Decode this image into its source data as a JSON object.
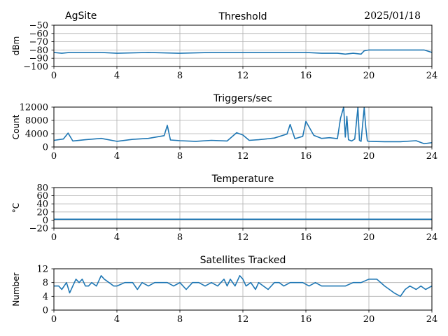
{
  "header": {
    "site": "AgSite",
    "date": "2025/01/18"
  },
  "colors": {
    "series": "#1f77b4",
    "grid": "#b0b0b0",
    "axis": "#000000"
  },
  "chart_data": [
    {
      "type": "line",
      "title": "Threshold",
      "xlabel": "",
      "ylabel": "dBm",
      "xlim": [
        0,
        24
      ],
      "ylim": [
        -100,
        -50
      ],
      "xticks": [
        0,
        4,
        8,
        12,
        16,
        20,
        24
      ],
      "yticks": [
        -100,
        -90,
        -80,
        -70,
        -60,
        -50
      ],
      "grid": true,
      "series": [
        {
          "x": [
            0,
            0.5,
            1,
            2,
            3,
            4,
            6,
            8,
            10,
            12,
            14,
            16,
            17,
            18,
            18.5,
            19,
            19.5,
            19.7,
            20,
            21,
            22,
            23,
            23.5,
            24
          ],
          "values": [
            -83,
            -84,
            -83,
            -83,
            -83,
            -84,
            -83,
            -84,
            -83,
            -83,
            -83,
            -83,
            -84,
            -84,
            -85,
            -84,
            -85,
            -81,
            -80,
            -80,
            -80,
            -80,
            -80,
            -83
          ]
        }
      ]
    },
    {
      "type": "line",
      "title": "Triggers/sec",
      "xlabel": "",
      "ylabel": "Count",
      "xlim": [
        0,
        24
      ],
      "ylim": [
        0,
        12000
      ],
      "xticks": [
        0,
        4,
        8,
        12,
        16,
        20,
        24
      ],
      "yticks": [
        0,
        4000,
        8000,
        12000
      ],
      "grid": true,
      "series": [
        {
          "x": [
            0,
            0.6,
            0.9,
            1.2,
            2,
            3,
            4,
            5,
            6,
            7,
            7.2,
            7.4,
            8,
            9,
            10,
            11,
            11.6,
            12,
            12.4,
            13,
            14,
            14.8,
            15,
            15.3,
            15.8,
            16,
            16.5,
            17,
            17.5,
            18,
            18.2,
            18.4,
            18.5,
            18.6,
            18.7,
            18.9,
            19.1,
            19.3,
            19.4,
            19.5,
            19.7,
            19.8,
            19.9,
            20,
            21,
            22,
            23,
            23.5,
            24
          ],
          "values": [
            2000,
            2400,
            4200,
            1800,
            2200,
            2600,
            1700,
            2300,
            2600,
            3400,
            6500,
            2100,
            1900,
            1700,
            2000,
            1800,
            4300,
            3600,
            2000,
            2200,
            2700,
            3900,
            6800,
            2500,
            3200,
            7700,
            3500,
            2600,
            2800,
            2500,
            8700,
            12000,
            3000,
            9200,
            2200,
            1800,
            2400,
            11900,
            2000,
            1700,
            11800,
            6000,
            1800,
            1700,
            1600,
            1600,
            1900,
            1000,
            1300
          ]
        }
      ]
    },
    {
      "type": "line",
      "title": "Temperature",
      "xlabel": "",
      "ylabel": "°C",
      "xlim": [
        0,
        24
      ],
      "ylim": [
        -20,
        80
      ],
      "xticks": [
        0,
        4,
        8,
        12,
        16,
        20,
        24
      ],
      "yticks": [
        -20,
        0,
        20,
        40,
        60,
        80
      ],
      "grid": true,
      "series": [
        {
          "x": [
            0,
            24
          ],
          "values": [
            2,
            2
          ]
        }
      ]
    },
    {
      "type": "line",
      "title": "Satellites Tracked",
      "xlabel": "",
      "ylabel": "Number",
      "xlim": [
        0,
        24
      ],
      "ylim": [
        0,
        12
      ],
      "xticks": [
        0,
        4,
        8,
        12,
        16,
        20,
        24
      ],
      "yticks": [
        0,
        4,
        8,
        12
      ],
      "grid": true,
      "series": [
        {
          "x": [
            0,
            0.3,
            0.5,
            0.8,
            1,
            1.2,
            1.4,
            1.6,
            1.8,
            2,
            2.2,
            2.4,
            2.7,
            3,
            3.2,
            3.5,
            3.8,
            4,
            4.5,
            5,
            5.3,
            5.6,
            6,
            6.4,
            6.8,
            7.2,
            7.6,
            8,
            8.4,
            8.8,
            9.2,
            9.6,
            10,
            10.4,
            10.8,
            11,
            11.2,
            11.5,
            11.8,
            12,
            12.2,
            12.5,
            12.8,
            13,
            13.3,
            13.6,
            14,
            14.3,
            14.6,
            15,
            15.4,
            15.8,
            16.2,
            16.6,
            17,
            17.5,
            18,
            18.5,
            19,
            19.5,
            20,
            20.5,
            21,
            21.3,
            21.6,
            22,
            22.3,
            22.6,
            23,
            23.3,
            23.6,
            24
          ],
          "values": [
            7,
            7,
            6,
            8,
            5,
            7,
            9,
            8,
            9,
            7,
            7,
            8,
            7,
            10,
            9,
            8,
            7,
            7,
            8,
            8,
            6,
            8,
            7,
            8,
            8,
            8,
            7,
            8,
            6,
            8,
            8,
            7,
            8,
            7,
            9,
            7,
            9,
            7,
            10,
            9,
            7,
            8,
            6,
            8,
            7,
            6,
            8,
            8,
            7,
            8,
            8,
            8,
            7,
            8,
            7,
            7,
            7,
            7,
            8,
            8,
            9,
            9,
            7,
            6,
            5,
            4,
            6,
            7,
            6,
            7,
            6,
            7
          ]
        }
      ]
    }
  ]
}
